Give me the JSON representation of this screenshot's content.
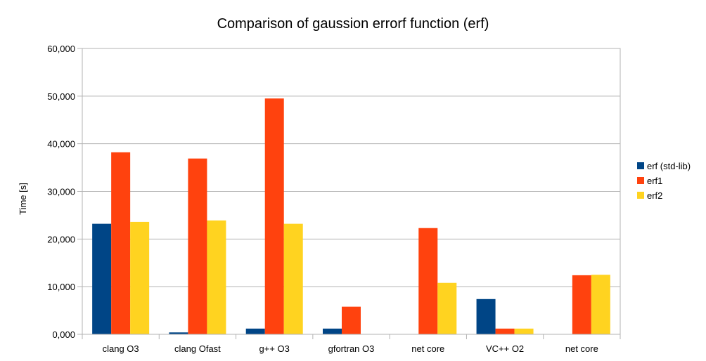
{
  "chart_data": {
    "type": "bar",
    "title": "Comparison of gaussion errorf function (erf)",
    "xlabel": "",
    "ylabel": "Time [s]",
    "ylim": [
      0,
      60
    ],
    "yticks": [
      "0,000",
      "10,000",
      "20,000",
      "30,000",
      "40,000",
      "50,000",
      "60,000"
    ],
    "grid": true,
    "legend_position": "right",
    "categories": [
      "clang O3",
      "clang Ofast",
      "g++ O3",
      "gfortran O3",
      "net core",
      "VC++ O2",
      "net core"
    ],
    "series": [
      {
        "name": "erf (std-lib)",
        "color": "#004586",
        "values": [
          23.2,
          0.4,
          1.2,
          1.2,
          0,
          7.4,
          0
        ]
      },
      {
        "name": "erf1",
        "color": "#ff420e",
        "values": [
          38.2,
          36.9,
          49.5,
          5.8,
          22.3,
          1.2,
          12.4
        ]
      },
      {
        "name": "erf2",
        "color": "#ffd320",
        "values": [
          23.6,
          23.9,
          23.2,
          0,
          10.8,
          1.2,
          12.5
        ]
      }
    ]
  }
}
